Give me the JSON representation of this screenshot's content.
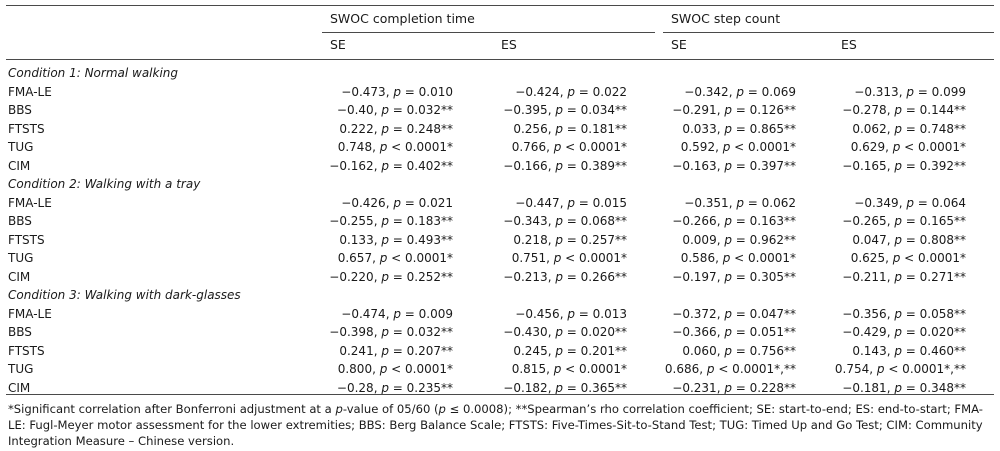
{
  "header": {
    "group1": "SWOC completion time",
    "group2": "SWOC step count",
    "columns": [
      "SE",
      "ES",
      "SE",
      "ES"
    ]
  },
  "sections": [
    {
      "title": "Condition 1: Normal walking",
      "rows": [
        {
          "label": "FMA-LE",
          "cells": [
            [
              "−0.473, ",
              "p",
              " = 0.010"
            ],
            [
              "−0.424, ",
              "p",
              " = 0.022"
            ],
            [
              "−0.342, ",
              "p",
              " = 0.069"
            ],
            [
              "−0.313, ",
              "p",
              " = 0.099"
            ]
          ]
        },
        {
          "label": "BBS",
          "cells": [
            [
              "−0.40, ",
              "p",
              " = 0.032**"
            ],
            [
              "−0.395, ",
              "p",
              " = 0.034**"
            ],
            [
              "−0.291, ",
              "p",
              " = 0.126**"
            ],
            [
              "−0.278, ",
              "p",
              " = 0.144**"
            ]
          ]
        },
        {
          "label": "FTSTS",
          "cells": [
            [
              "0.222, ",
              "p",
              " = 0.248**"
            ],
            [
              "0.256, ",
              "p",
              " = 0.181**"
            ],
            [
              "0.033, ",
              "p",
              " = 0.865**"
            ],
            [
              "0.062, ",
              "p",
              " = 0.748**"
            ]
          ]
        },
        {
          "label": "TUG",
          "cells": [
            [
              "0.748, ",
              "p",
              " < 0.0001*"
            ],
            [
              "0.766, ",
              "p",
              " < 0.0001*"
            ],
            [
              "0.592, ",
              "p",
              " < 0.0001*"
            ],
            [
              "0.629, ",
              "p",
              " < 0.0001*"
            ]
          ]
        },
        {
          "label": "CIM",
          "cells": [
            [
              "−0.162, ",
              "p",
              " = 0.402**"
            ],
            [
              "−0.166, ",
              "p",
              " = 0.389**"
            ],
            [
              "−0.163, ",
              "p",
              " = 0.397**"
            ],
            [
              "−0.165, ",
              "p",
              " = 0.392**"
            ]
          ]
        }
      ]
    },
    {
      "title": "Condition 2: Walking with a tray",
      "rows": [
        {
          "label": "FMA-LE",
          "cells": [
            [
              "−0.426, ",
              "p",
              " = 0.021"
            ],
            [
              "−0.447, ",
              "p",
              " = 0.015"
            ],
            [
              "−0.351, ",
              "p",
              " = 0.062"
            ],
            [
              "−0.349, ",
              "p",
              " = 0.064"
            ]
          ]
        },
        {
          "label": "BBS",
          "cells": [
            [
              "−0.255, ",
              "p",
              " = 0.183**"
            ],
            [
              "−0.343, ",
              "p",
              " = 0.068**"
            ],
            [
              "−0.266, ",
              "p",
              " = 0.163**"
            ],
            [
              "−0.265, ",
              "p",
              " = 0.165**"
            ]
          ]
        },
        {
          "label": "FTSTS",
          "cells": [
            [
              "0.133, ",
              "p",
              " = 0.493**"
            ],
            [
              "0.218, ",
              "p",
              " = 0.257**"
            ],
            [
              "0.009, ",
              "p",
              " = 0.962**"
            ],
            [
              "0.047, ",
              "p",
              " = 0.808**"
            ]
          ]
        },
        {
          "label": "TUG",
          "cells": [
            [
              "0.657, ",
              "p",
              " < 0.0001*"
            ],
            [
              "0.751, ",
              "p",
              " < 0.0001*"
            ],
            [
              "0.586, ",
              "p",
              " < 0.0001*"
            ],
            [
              "0.625, ",
              "p",
              " < 0.0001*"
            ]
          ]
        },
        {
          "label": "CIM",
          "cells": [
            [
              "−0.220, ",
              "p",
              " = 0.252**"
            ],
            [
              "−0.213, ",
              "p",
              " = 0.266**"
            ],
            [
              "−0.197, ",
              "p",
              " = 0.305**"
            ],
            [
              "−0.211, ",
              "p",
              " = 0.271**"
            ]
          ]
        }
      ]
    },
    {
      "title": "Condition 3: Walking with dark-glasses",
      "rows": [
        {
          "label": "FMA-LE",
          "cells": [
            [
              "−0.474, ",
              "p",
              " = 0.009"
            ],
            [
              "−0.456, ",
              "p",
              " = 0.013"
            ],
            [
              "−0.372, ",
              "p",
              " = 0.047**"
            ],
            [
              "−0.356, ",
              "p",
              " = 0.058**"
            ]
          ]
        },
        {
          "label": "BBS",
          "cells": [
            [
              "−0.398, ",
              "p",
              " = 0.032**"
            ],
            [
              "−0.430, ",
              "p",
              " = 0.020**"
            ],
            [
              "−0.366, ",
              "p",
              " = 0.051**"
            ],
            [
              "−0.429, ",
              "p",
              " = 0.020**"
            ]
          ]
        },
        {
          "label": "FTSTS",
          "cells": [
            [
              "0.241, ",
              "p",
              " = 0.207**"
            ],
            [
              "0.245, ",
              "p",
              " = 0.201**"
            ],
            [
              "0.060, ",
              "p",
              " = 0.756**"
            ],
            [
              "0.143, ",
              "p",
              " = 0.460**"
            ]
          ]
        },
        {
          "label": "TUG",
          "cells": [
            [
              "0.800, ",
              "p",
              " < 0.0001*"
            ],
            [
              "0.815, ",
              "p",
              " < 0.0001*"
            ],
            [
              "0.686, ",
              "p",
              " < 0.0001*,**"
            ],
            [
              "0.754, ",
              "p",
              " < 0.0001*,**"
            ]
          ]
        },
        {
          "label": "CIM",
          "cells": [
            [
              "−0.28, ",
              "p",
              " = 0.235**"
            ],
            [
              "−0.182, ",
              "p",
              " = 0.365**"
            ],
            [
              "−0.231, ",
              "p",
              " = 0.228**"
            ],
            [
              "−0.181, ",
              "p",
              " = 0.348**"
            ]
          ]
        }
      ]
    }
  ],
  "footnote": {
    "part1": "*Significant correlation after Bonferroni adjustment at a ",
    "p1": "p",
    "part2": "-value of 05/60 (",
    "p2": "p",
    "part3": " ≤ 0.0008); **Spearman’s rho correlation coefficient; SE: start-to-end; ES: end-to-start; FMA-LE: Fugl-Meyer motor assessment for the lower extremities; BBS: Berg Balance Scale; FTSTS: Five-Times-Sit-to-Stand Test; TUG: Timed Up and Go Test; CIM: Community Integration Measure – Chinese version."
  }
}
